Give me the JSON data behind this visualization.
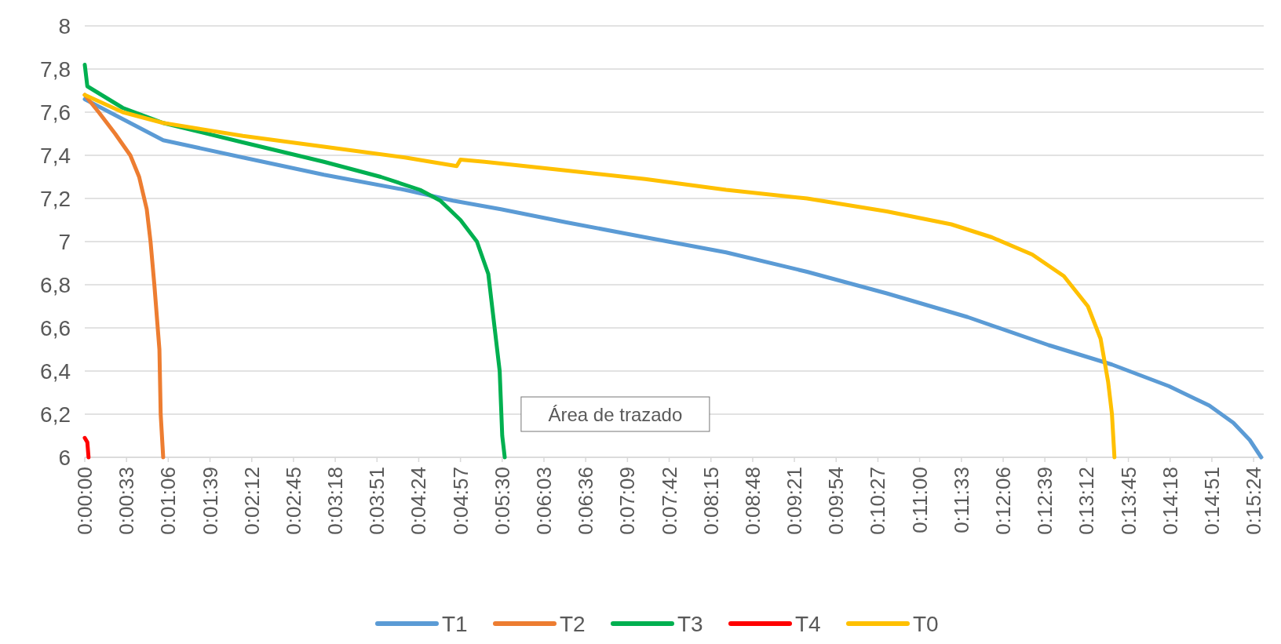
{
  "chart_data": {
    "type": "line",
    "xlim": [
      0,
      0.25889
    ],
    "ylim": [
      6,
      8
    ],
    "xticks": [
      {
        "value": 0,
        "label": "0:00:00"
      },
      {
        "value": 0.00917,
        "label": "0:00:33"
      },
      {
        "value": 0.01833,
        "label": "0:01:06"
      },
      {
        "value": 0.0275,
        "label": "0:01:39"
      },
      {
        "value": 0.03667,
        "label": "0:02:12"
      },
      {
        "value": 0.04583,
        "label": "0:02:45"
      },
      {
        "value": 0.055,
        "label": "0:03:18"
      },
      {
        "value": 0.06417,
        "label": "0:03:51"
      },
      {
        "value": 0.07333,
        "label": "0:04:24"
      },
      {
        "value": 0.0825,
        "label": "0:04:57"
      },
      {
        "value": 0.09167,
        "label": "0:05:30"
      },
      {
        "value": 0.10083,
        "label": "0:06:03"
      },
      {
        "value": 0.11,
        "label": "0:06:36"
      },
      {
        "value": 0.11917,
        "label": "0:07:09"
      },
      {
        "value": 0.12833,
        "label": "0:07:42"
      },
      {
        "value": 0.1375,
        "label": "0:08:15"
      },
      {
        "value": 0.14667,
        "label": "0:08:48"
      },
      {
        "value": 0.15583,
        "label": "0:09:21"
      },
      {
        "value": 0.165,
        "label": "0:09:54"
      },
      {
        "value": 0.17417,
        "label": "0:10:27"
      },
      {
        "value": 0.18333,
        "label": "0:11:00"
      },
      {
        "value": 0.1925,
        "label": "0:11:33"
      },
      {
        "value": 0.20167,
        "label": "0:12:06"
      },
      {
        "value": 0.21083,
        "label": "0:12:39"
      },
      {
        "value": 0.22,
        "label": "0:13:12"
      },
      {
        "value": 0.22917,
        "label": "0:13:45"
      },
      {
        "value": 0.23833,
        "label": "0:14:18"
      },
      {
        "value": 0.2475,
        "label": "0:14:51"
      },
      {
        "value": 0.25667,
        "label": "0:15:24"
      }
    ],
    "yticks": [
      6,
      {
        "value": 6.2,
        "label": "6,2"
      },
      {
        "value": 6.4,
        "label": "6,4"
      },
      {
        "value": 6.6,
        "label": "6,6"
      },
      {
        "value": 6.8,
        "label": "6,8"
      },
      7,
      {
        "value": 7.2,
        "label": "7,2"
      },
      {
        "value": 7.4,
        "label": "7,4"
      },
      {
        "value": 7.6,
        "label": "7,6"
      },
      {
        "value": 7.8,
        "label": "7,8"
      },
      8
    ],
    "grid": "y",
    "legend": "bottom",
    "marker": "none",
    "line_style": "solid",
    "annotations": [
      "Área de trazado"
    ],
    "series": [
      {
        "name": "T1",
        "color": "#5b9bd5",
        "x": [
          0,
          0.01722,
          0.03472,
          0.0525,
          0.07028,
          0.08083,
          0.09139,
          0.10556,
          0.12306,
          0.14083,
          0.15861,
          0.17611,
          0.19389,
          0.21167,
          0.22556,
          0.23806,
          0.24694,
          0.25222,
          0.25583,
          0.25833
        ],
        "values": [
          7.66,
          7.47,
          7.39,
          7.31,
          7.24,
          7.19,
          7.15,
          7.09,
          7.02,
          6.95,
          6.86,
          6.76,
          6.65,
          6.52,
          6.43,
          6.33,
          6.24,
          6.16,
          6.08,
          6.0
        ]
      },
      {
        "name": "T2",
        "color": "#ed7d31",
        "x": [
          0,
          0.00306,
          0.00667,
          0.01,
          0.01194,
          0.01361,
          0.01444,
          0.01528,
          0.01639,
          0.01667,
          0.01722
        ],
        "values": [
          7.68,
          7.6,
          7.5,
          7.4,
          7.3,
          7.15,
          7.0,
          6.8,
          6.5,
          6.2,
          6.0
        ]
      },
      {
        "name": "T3",
        "color": "#00b050",
        "x": [
          0,
          0.00056,
          0.00833,
          0.01722,
          0.03472,
          0.0525,
          0.065,
          0.07361,
          0.07806,
          0.0825,
          0.08611,
          0.08861,
          0.09,
          0.09111,
          0.09167,
          0.09222
        ],
        "values": [
          7.82,
          7.72,
          7.62,
          7.55,
          7.46,
          7.37,
          7.3,
          7.24,
          7.19,
          7.1,
          7.0,
          6.85,
          6.6,
          6.4,
          6.1,
          6.0
        ]
      },
      {
        "name": "T4",
        "color": "#ff0000",
        "x": [
          0,
          0.00056,
          0.00083
        ],
        "values": [
          6.09,
          6.07,
          6.0
        ]
      },
      {
        "name": "T0",
        "color": "#ffc000",
        "x": [
          0,
          0.00833,
          0.01722,
          0.03472,
          0.0525,
          0.07028,
          0.08167,
          0.0825,
          0.08778,
          0.10556,
          0.12306,
          0.14083,
          0.15861,
          0.17611,
          0.19028,
          0.19917,
          0.20806,
          0.215,
          0.22028,
          0.22306,
          0.22472,
          0.22556,
          0.22611
        ],
        "values": [
          7.68,
          7.6,
          7.55,
          7.49,
          7.44,
          7.39,
          7.35,
          7.38,
          7.37,
          7.33,
          7.29,
          7.24,
          7.2,
          7.14,
          7.08,
          7.02,
          6.94,
          6.84,
          6.7,
          6.55,
          6.35,
          6.2,
          6.0
        ]
      }
    ]
  }
}
